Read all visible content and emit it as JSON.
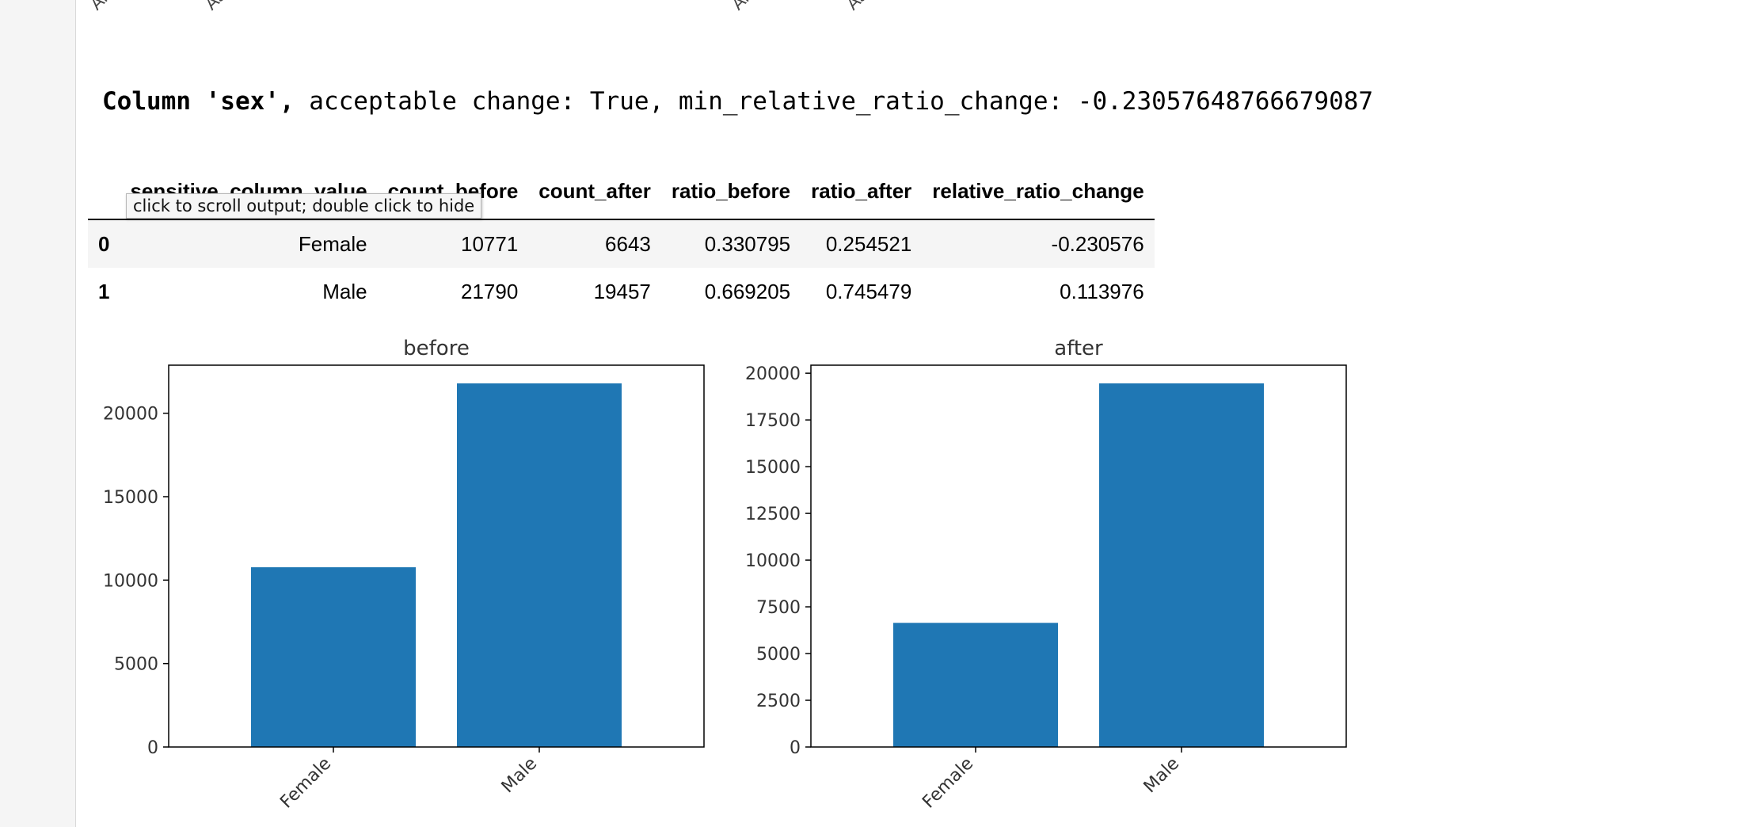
{
  "top_partial_ticks": [
    "Ame",
    "As",
    "Ame",
    "As"
  ],
  "summary": {
    "column_label": "Column 'sex',",
    "details": " acceptable change: True, min_relative_ratio_change: -0.23057648766679087"
  },
  "tooltip": "click to scroll output; double click to hide",
  "table": {
    "columns": [
      "sensitive_column_value",
      "count_before",
      "count_after",
      "ratio_before",
      "ratio_after",
      "relative_ratio_change"
    ],
    "rows": [
      {
        "index": "0",
        "cells": [
          "Female",
          "10771",
          "6643",
          "0.330795",
          "0.254521",
          "-0.230576"
        ]
      },
      {
        "index": "1",
        "cells": [
          "Male",
          "21790",
          "19457",
          "0.669205",
          "0.745479",
          "0.113976"
        ]
      }
    ]
  },
  "bar_color": "#1f77b4",
  "chart_data": [
    {
      "type": "bar",
      "title": "before",
      "categories": [
        "Female",
        "Male"
      ],
      "values": [
        10771,
        21790
      ],
      "ylim": [
        0,
        22880
      ],
      "yticks": [
        0,
        5000,
        10000,
        15000,
        20000
      ],
      "grid": false
    },
    {
      "type": "bar",
      "title": "after",
      "categories": [
        "Female",
        "Male"
      ],
      "values": [
        6643,
        19457
      ],
      "ylim": [
        0,
        20430
      ],
      "yticks": [
        0,
        2500,
        5000,
        7500,
        10000,
        12500,
        15000,
        17500,
        20000
      ],
      "grid": false
    }
  ]
}
